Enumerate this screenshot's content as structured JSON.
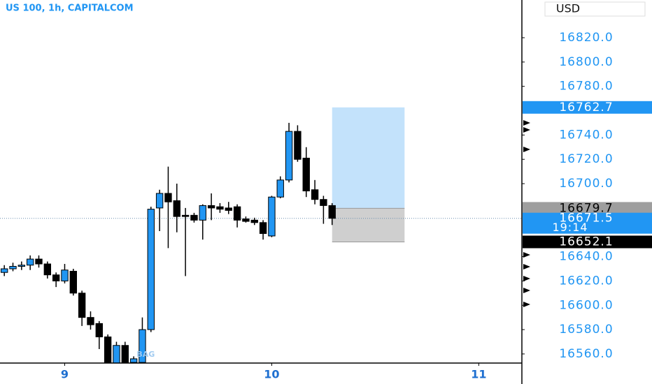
{
  "chart_data": {
    "type": "candlestick",
    "title": "US 100, 1h, CAPITALCOM",
    "currency": "USD",
    "annotation": "BAG",
    "up_color": "#2196f3",
    "down_color": "#000000",
    "x": [
      -7,
      -6,
      -5,
      -4,
      -3,
      -2,
      -1,
      0,
      1,
      2,
      3,
      4,
      5,
      6,
      7,
      8,
      9,
      10,
      11,
      12,
      13,
      14,
      15,
      16,
      17,
      18,
      19,
      20,
      21,
      22,
      23,
      24,
      25,
      26,
      27,
      28,
      29,
      30,
      31
    ],
    "open": [
      16627,
      16630,
      16632,
      16633,
      16638,
      16634,
      16625,
      16620,
      16628,
      16610,
      16590,
      16585,
      16574,
      16552,
      16567,
      16553,
      16553,
      16580,
      16680,
      16692,
      16686,
      16674,
      16674,
      16670,
      16682,
      16681,
      16680,
      16681,
      16671,
      16670,
      16668,
      16657,
      16689,
      16703,
      16743,
      16721,
      16695,
      16687,
      16682
    ],
    "high": [
      16633,
      16635,
      16636,
      16641,
      16641,
      16636,
      16627,
      16634,
      16630,
      16612,
      16595,
      16587,
      16576,
      16570,
      16570,
      16558,
      16590,
      16681,
      16695,
      16714,
      16700,
      16680,
      16676,
      16683,
      16692,
      16684,
      16685,
      16683,
      16673,
      16672,
      16670,
      16690,
      16706,
      16750,
      16748,
      16730,
      16703,
      16690,
      16684
    ],
    "low": [
      16624,
      16628,
      16629,
      16629,
      16631,
      16622,
      16615,
      16618,
      16608,
      16583,
      16580,
      16564,
      16550,
      16550,
      16550,
      16550,
      16550,
      16578,
      16661,
      16647,
      16660,
      16624,
      16668,
      16654,
      16670,
      16676,
      16675,
      16664,
      16668,
      16666,
      16654,
      16656,
      16688,
      16701,
      16718,
      16689,
      16683,
      16667,
      16666
    ],
    "close": [
      16630,
      16632,
      16633,
      16638,
      16634,
      16625,
      16620,
      16629,
      16610,
      16590,
      16584,
      16574,
      16552,
      16567,
      16553,
      16556,
      16580,
      16679,
      16692,
      16685,
      16673,
      16673,
      16670,
      16682,
      16680,
      16679,
      16678,
      16670,
      16669,
      16668,
      16659,
      16689,
      16703,
      16743,
      16720,
      16694,
      16687,
      16682,
      16671.5
    ],
    "position": {
      "take_profit": 16762.7,
      "entry": 16679.7,
      "stop_loss": 16652.1,
      "x_start": 31,
      "x_end": 39.4
    },
    "last_price": 16671.5,
    "countdown": "19:14",
    "xlim": [
      -7.5,
      53
    ],
    "xticks": [
      {
        "value": 0,
        "label": "9"
      },
      {
        "value": 24,
        "label": "10"
      },
      {
        "value": 48,
        "label": "11"
      }
    ],
    "ylim": [
      16552.5,
      16851
    ],
    "yticks": [
      {
        "value": 16560,
        "label": "16560.0"
      },
      {
        "value": 16580,
        "label": "16580.0"
      },
      {
        "value": 16600,
        "label": "16600.0"
      },
      {
        "value": 16620,
        "label": "16620.0"
      },
      {
        "value": 16640,
        "label": "16640.0"
      },
      {
        "value": 16700,
        "label": "16700.0"
      },
      {
        "value": 16720,
        "label": "16720.0"
      },
      {
        "value": 16740,
        "label": "16740.0"
      },
      {
        "value": 16780,
        "label": "16780.0"
      },
      {
        "value": 16800,
        "label": "16800.0"
      },
      {
        "value": 16820,
        "label": "16820.0"
      }
    ]
  }
}
